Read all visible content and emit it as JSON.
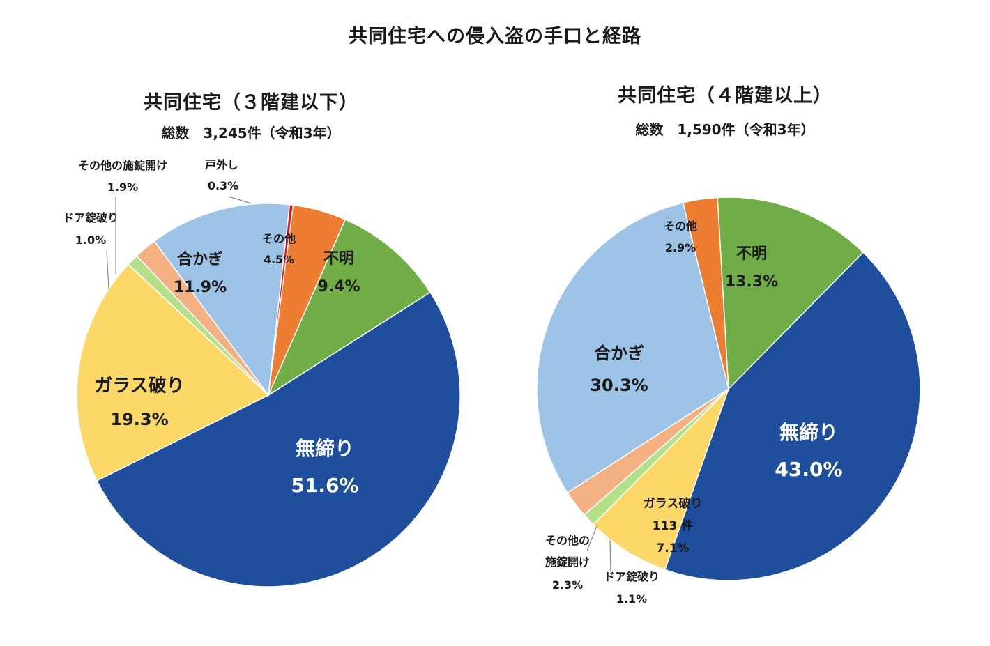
{
  "title": "共同住宅への侵入盗の手口と経路",
  "chart_data": [
    {
      "type": "pie",
      "title": "共同住宅（３階建以下）",
      "subtitle": "総数　3,245件（令和3年）",
      "slices": [
        {
          "label": "無締り",
          "value": 51.6,
          "value_text": "51.6%",
          "color": "#1f4e9c"
        },
        {
          "label": "ガラス破り",
          "value": 19.3,
          "value_text": "19.3%",
          "color": "#fcd868"
        },
        {
          "label": "ドア錠破り",
          "value": 1.0,
          "value_text": "1.0%",
          "color": "#b5e08a"
        },
        {
          "label": "その他の施錠開け",
          "value": 1.9,
          "value_text": "1.9%",
          "color": "#f4b183"
        },
        {
          "label": "合かぎ",
          "value": 11.9,
          "value_text": "11.9%",
          "color": "#9dc3e6"
        },
        {
          "label": "戸外し",
          "value": 0.3,
          "value_text": "0.3%",
          "color": "#ee1111"
        },
        {
          "label": "その他",
          "value": 4.5,
          "value_text": "4.5%",
          "color": "#ed7d31"
        },
        {
          "label": "不明",
          "value": 9.4,
          "value_text": "9.4%",
          "color": "#70ad47"
        }
      ]
    },
    {
      "type": "pie",
      "title": "共同住宅（４階建以上）",
      "subtitle": "総数　1,590件（令和3年）",
      "slices": [
        {
          "label": "無締り",
          "value": 43.0,
          "value_text": "43.0%",
          "color": "#1f4e9c"
        },
        {
          "label": "ガラス破り",
          "value": 7.1,
          "value_text": "7.1%",
          "count_text": "113 件",
          "color": "#fcd868"
        },
        {
          "label": "ドア錠破り",
          "value": 1.1,
          "value_text": "1.1%",
          "color": "#b5e08a"
        },
        {
          "label": "その他の施錠開け",
          "label_lines": [
            "その他の",
            "施錠開け"
          ],
          "value": 2.3,
          "value_text": "2.3%",
          "color": "#f4b183"
        },
        {
          "label": "合かぎ",
          "value": 30.3,
          "value_text": "30.3%",
          "color": "#9dc3e6"
        },
        {
          "label": "その他",
          "value": 2.9,
          "value_text": "2.9%",
          "color": "#ed7d31"
        },
        {
          "label": "不明",
          "value": 13.3,
          "value_text": "13.3%",
          "color": "#70ad47"
        }
      ]
    }
  ]
}
